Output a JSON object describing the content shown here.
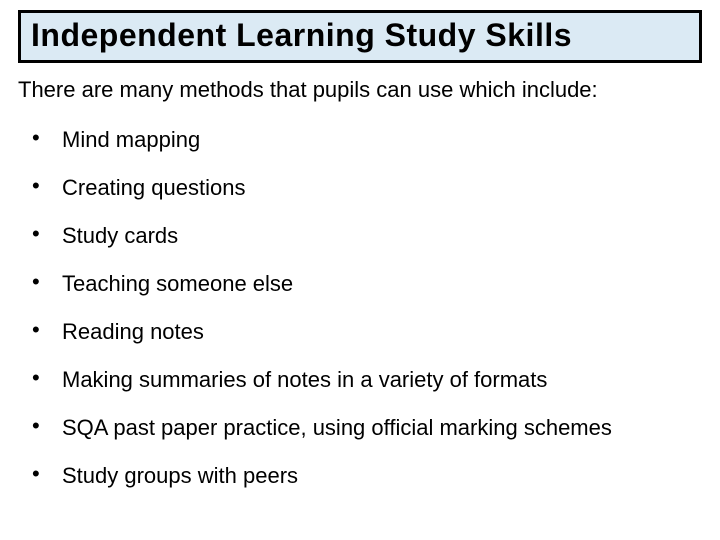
{
  "title": "Independent Learning Study Skills",
  "intro": "There are many methods that pupils can use which include:",
  "bullets": [
    "Mind mapping",
    "Creating questions",
    "Study cards",
    "Teaching someone else",
    "Reading notes",
    "Making summaries of notes in a variety of formats",
    "SQA past paper practice, using official marking schemes",
    "Study groups with peers"
  ],
  "colors": {
    "title_bg": "#dbeaf4",
    "title_border": "#000000",
    "page_bg": "#ffffff",
    "text": "#000000"
  },
  "typography": {
    "font_family": "Comic Sans MS",
    "title_size_pt": 32,
    "body_size_pt": 22,
    "title_weight": "bold"
  }
}
